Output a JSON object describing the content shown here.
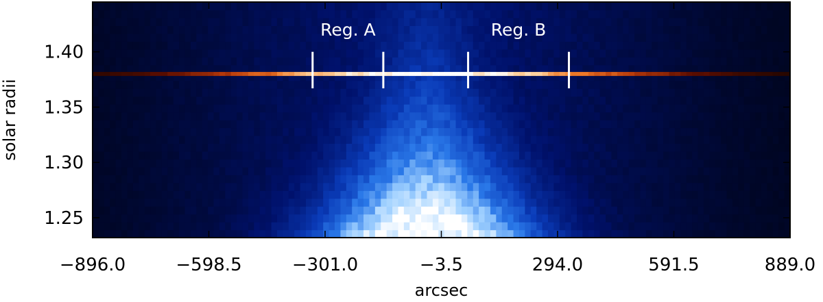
{
  "chart_data": {
    "type": "heatmap",
    "title": "",
    "xlabel": "arcsec",
    "ylabel": "solar radii",
    "xlim": [
      -896.0,
      889.0
    ],
    "ylim": [
      1.232,
      1.445
    ],
    "x_ticks": [
      -896.0,
      -598.5,
      -301.0,
      -3.5,
      294.0,
      591.5,
      889.0
    ],
    "x_tick_labels": [
      "−896.0",
      "−598.5",
      "−301.0",
      "−3.5",
      "294.0",
      "591.5",
      "889.0"
    ],
    "y_ticks": [
      1.25,
      1.3,
      1.35,
      1.4
    ],
    "y_tick_labels": [
      "1.25",
      "1.30",
      "1.35",
      "1.40"
    ],
    "colormap": [
      "#000000",
      "#00116b",
      "#0a3bb8",
      "#2a78e8",
      "#9fd0ff",
      "#ffffff"
    ],
    "highlight_row": {
      "radius": 1.38,
      "colormap": [
        "#0d0300",
        "#5e0e00",
        "#b83a0a",
        "#f07a28",
        "#ffcf9a",
        "#ffffff"
      ]
    },
    "regions": [
      {
        "label": "Reg. A",
        "x_start": -333.0,
        "x_end": -152.0
      },
      {
        "label": "Reg. B",
        "x_start": 65.0,
        "x_end": 323.0
      }
    ],
    "marker_range": [
      1.367,
      1.4
    ],
    "grid": false,
    "legend": "none"
  }
}
